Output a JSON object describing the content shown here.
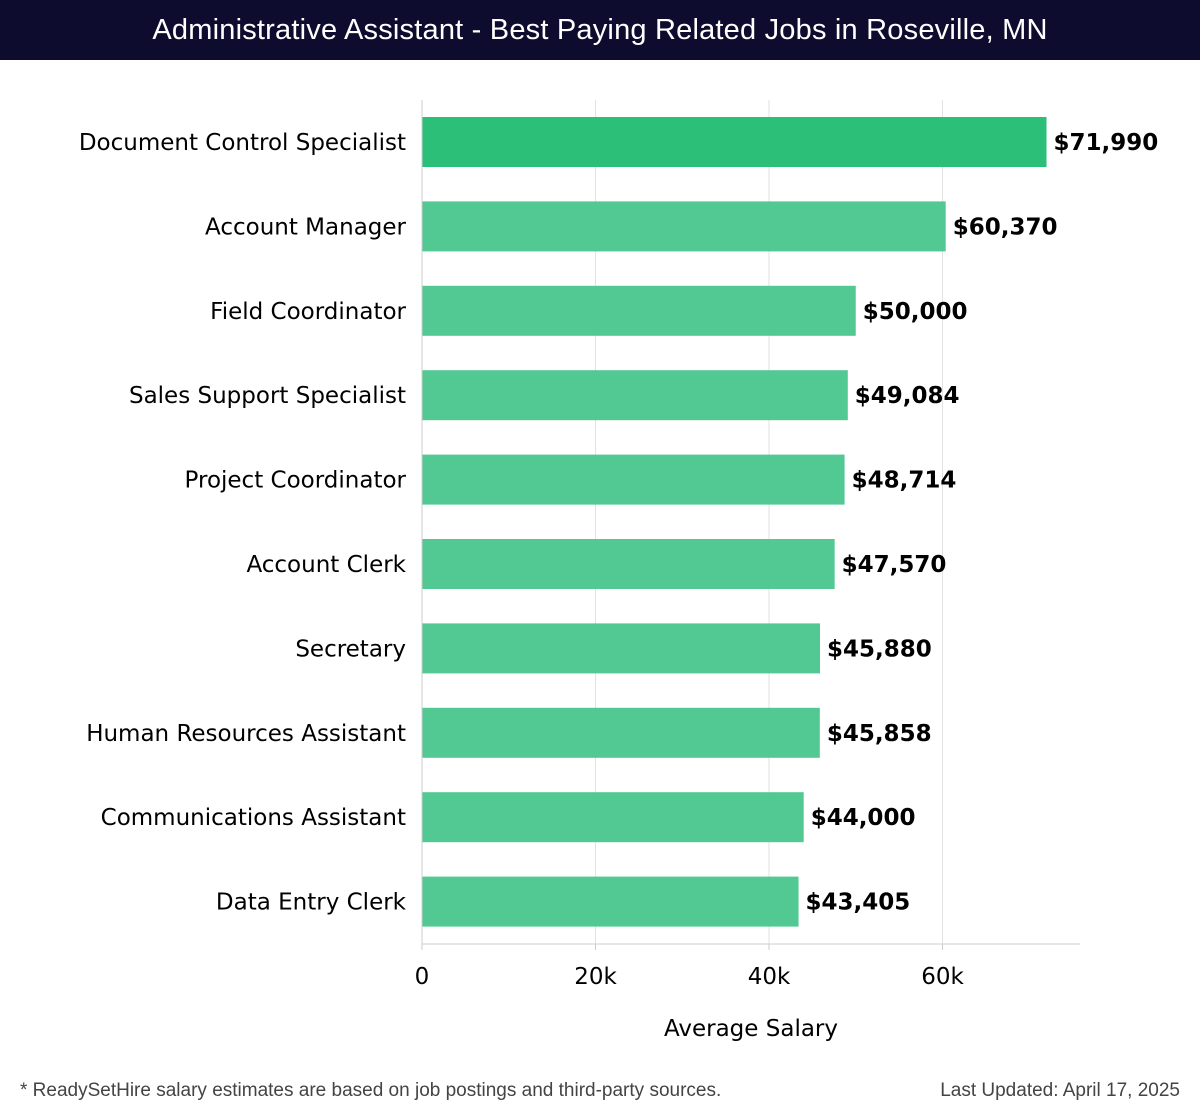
{
  "header": {
    "title": "Administrative Assistant - Best Paying Related Jobs in Roseville, MN"
  },
  "chart_data": {
    "type": "bar",
    "orientation": "horizontal",
    "title": "Administrative Assistant - Best Paying Related Jobs in Roseville, MN",
    "categories": [
      "Document Control Specialist",
      "Account Manager",
      "Field Coordinator",
      "Sales Support Specialist",
      "Project Coordinator",
      "Account Clerk",
      "Secretary",
      "Human Resources Assistant",
      "Communications Assistant",
      "Data Entry Clerk"
    ],
    "values": [
      71990,
      60370,
      50000,
      49084,
      48714,
      47570,
      45880,
      45858,
      44000,
      43405
    ],
    "value_labels": [
      "$71,990",
      "$60,370",
      "$50,000",
      "$49,084",
      "$48,714",
      "$47,570",
      "$45,880",
      "$45,858",
      "$44,000",
      "$43,405"
    ],
    "xlabel": "Average Salary",
    "ylabel": "",
    "xlim": [
      0,
      76000
    ],
    "xticks": [
      0,
      20000,
      40000,
      60000
    ],
    "xtick_labels": [
      "0",
      "20k",
      "40k",
      "60k"
    ],
    "grid": true,
    "colors": {
      "top_bar": "#2bbf78",
      "bar": "#52c992",
      "grid": "#e2e2e2",
      "axis": "#cccccc",
      "label": "#000000"
    }
  },
  "footer": {
    "note": "* ReadySetHire salary estimates are based on job postings and third-party sources.",
    "updated": "Last Updated: April 17, 2025"
  }
}
